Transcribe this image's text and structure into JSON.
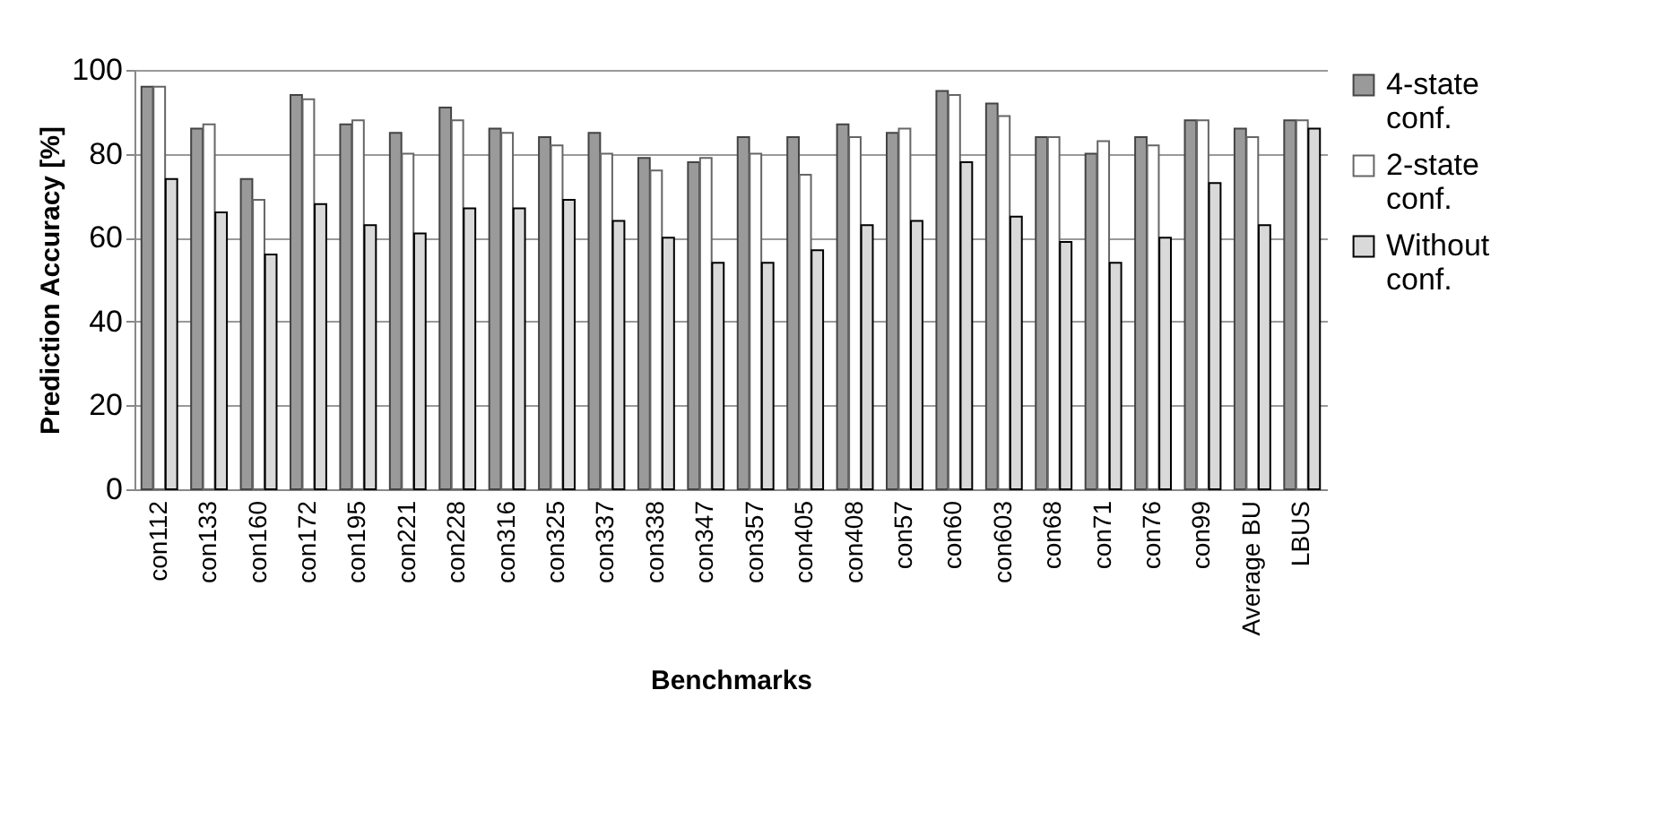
{
  "chart_data": {
    "type": "bar",
    "xlabel": "Benchmarks",
    "ylabel": "Prediction Accuracy [%]",
    "categories": [
      "con112",
      "con133",
      "con160",
      "con172",
      "con195",
      "con221",
      "con228",
      "con316",
      "con325",
      "con337",
      "con338",
      "con347",
      "con357",
      "con405",
      "con408",
      "con57",
      "con60",
      "con603",
      "con68",
      "con71",
      "con76",
      "con99",
      "Average BU",
      "LBUS"
    ],
    "series": [
      {
        "name": "4-state conf.",
        "color": "#9a9a9a",
        "values": [
          96,
          86,
          74,
          94,
          87,
          85,
          91,
          86,
          84,
          85,
          79,
          78,
          84,
          84,
          87,
          85,
          95,
          92,
          84,
          80,
          84,
          88,
          86,
          88
        ]
      },
      {
        "name": "2-state conf.",
        "color": "#ffffff",
        "values": [
          96,
          87,
          69,
          93,
          88,
          80,
          88,
          85,
          82,
          80,
          76,
          79,
          80,
          75,
          84,
          86,
          94,
          89,
          84,
          83,
          82,
          88,
          84,
          88
        ]
      },
      {
        "name": "Without conf.",
        "color": "#d9d9d9",
        "values": [
          74,
          66,
          56,
          68,
          63,
          61,
          67,
          67,
          69,
          64,
          60,
          54,
          54,
          57,
          63,
          64,
          78,
          65,
          59,
          54,
          60,
          73,
          63,
          86
        ]
      }
    ],
    "ylim": [
      0,
      100
    ],
    "yticks": [
      0,
      20,
      40,
      60,
      80,
      100
    ],
    "grid": "y",
    "legend": "right"
  }
}
